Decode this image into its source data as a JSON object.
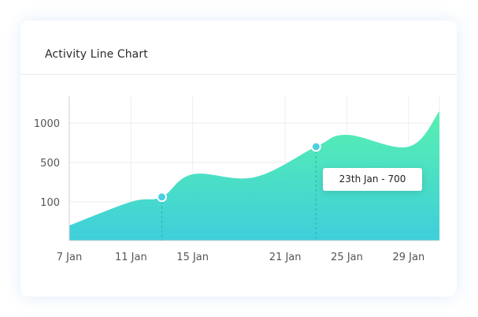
{
  "card": {
    "title": "Activity Line Chart"
  },
  "tooltip": {
    "text": "23th Jan - 700"
  },
  "colors": {
    "gradient_top": "#58f0b0",
    "gradient_bottom": "#3ecfdb",
    "marker": "#4ccfe0",
    "grid": "#eeeeee",
    "axis": "#cfcfcf"
  },
  "chart_data": {
    "type": "area",
    "title": "Activity Line Chart",
    "xlabel": "",
    "ylabel": "",
    "x_ticks": [
      "7 Jan",
      "11 Jan",
      "15 Jan",
      "21 Jan",
      "25 Jan",
      "29 Jan"
    ],
    "y_ticks": [
      "100",
      "500",
      "1000"
    ],
    "x": [
      "7 Jan",
      "11 Jan",
      "13 Jan",
      "15 Jan",
      "19 Jan",
      "23 Jan",
      "25 Jan",
      "29 Jan",
      "31 Jan"
    ],
    "values": [
      40,
      100,
      150,
      380,
      350,
      700,
      850,
      700,
      1100
    ],
    "highlighted_points": [
      {
        "x": "13 Jan",
        "y": 150
      },
      {
        "x": "23 Jan",
        "y": 700
      }
    ],
    "grid": true,
    "legend": "none"
  }
}
